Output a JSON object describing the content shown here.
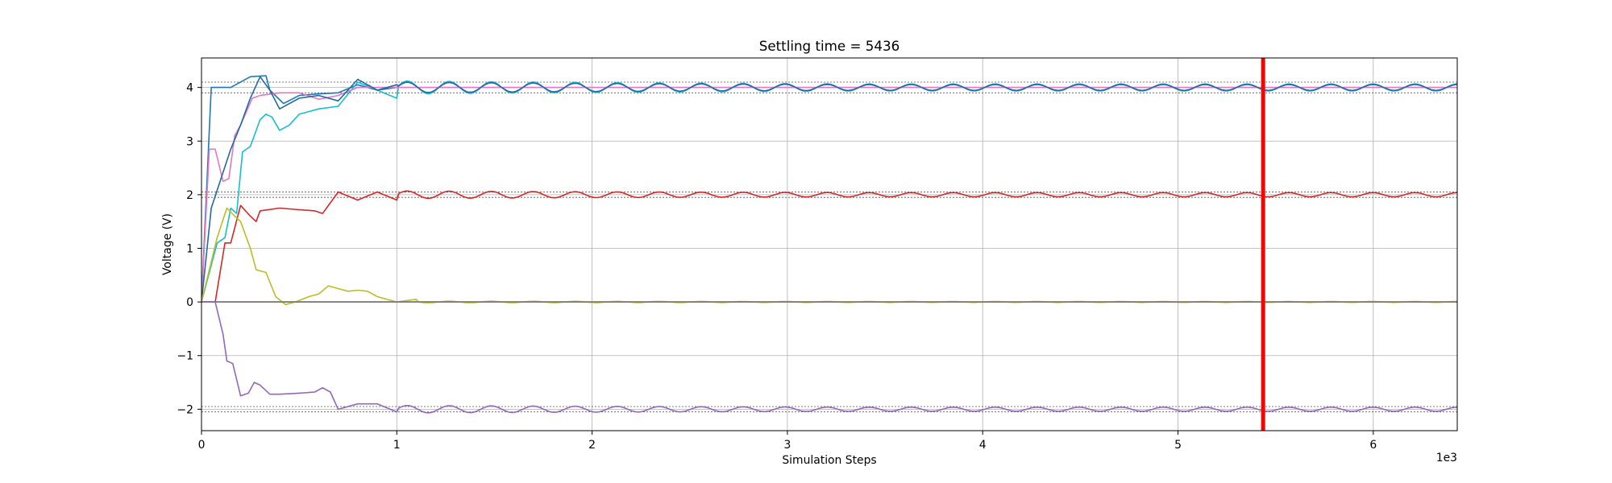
{
  "chart_data": {
    "type": "line",
    "title": "Settling time = 5436",
    "xlabel": "Simulation Steps",
    "ylabel": "Voltage (V)",
    "x_offset_label": "1e3",
    "xlim": [
      0,
      6430
    ],
    "ylim": [
      -2.4,
      4.55
    ],
    "grid": true,
    "x_ticks": [
      0,
      1000,
      2000,
      3000,
      4000,
      5000,
      6000
    ],
    "x_tick_labels": [
      "0",
      "1",
      "2",
      "3",
      "4",
      "5",
      "6"
    ],
    "y_ticks": [
      -2,
      -1,
      0,
      1,
      2,
      3,
      4
    ],
    "y_tick_labels": [
      "−2",
      "−1",
      "0",
      "1",
      "2",
      "3",
      "4"
    ],
    "settling_time": 5436,
    "settling_line_color": "#ff0000",
    "reference_lines": [
      4.1,
      3.9,
      2.05,
      1.95,
      0,
      -1.95,
      -2.05
    ],
    "series": [
      {
        "color": "#1f77b4",
        "points": [
          [
            0,
            0
          ],
          [
            50,
            4.0
          ],
          [
            150,
            4.0
          ],
          [
            250,
            4.2
          ],
          [
            330,
            4.22
          ],
          [
            350,
            3.95
          ],
          [
            420,
            3.7
          ],
          [
            500,
            3.85
          ],
          [
            600,
            3.88
          ],
          [
            700,
            3.9
          ],
          [
            800,
            4.05
          ],
          [
            900,
            3.95
          ],
          [
            1000,
            4.0
          ]
        ],
        "settle": 4.0,
        "amp": 0.1
      },
      {
        "color": "#17becf",
        "points": [
          [
            0,
            0
          ],
          [
            80,
            1.1
          ],
          [
            120,
            1.2
          ],
          [
            150,
            1.75
          ],
          [
            180,
            1.65
          ],
          [
            210,
            2.8
          ],
          [
            250,
            2.9
          ],
          [
            300,
            3.4
          ],
          [
            330,
            3.5
          ],
          [
            360,
            3.45
          ],
          [
            400,
            3.2
          ],
          [
            450,
            3.3
          ],
          [
            500,
            3.5
          ],
          [
            600,
            3.6
          ],
          [
            700,
            3.65
          ],
          [
            800,
            4.1
          ],
          [
            900,
            3.95
          ],
          [
            1000,
            3.8
          ]
        ],
        "settle": 4.0,
        "amp": 0.12
      },
      {
        "color": "#e377c2",
        "points": [
          [
            0,
            0
          ],
          [
            40,
            2.85
          ],
          [
            70,
            2.85
          ],
          [
            110,
            2.25
          ],
          [
            140,
            2.3
          ],
          [
            170,
            3.1
          ],
          [
            200,
            3.3
          ],
          [
            260,
            3.8
          ],
          [
            300,
            3.85
          ],
          [
            400,
            3.9
          ],
          [
            500,
            3.9
          ],
          [
            600,
            3.78
          ],
          [
            700,
            3.85
          ],
          [
            800,
            4.0
          ],
          [
            900,
            4.0
          ],
          [
            1000,
            4.0
          ]
        ],
        "settle": 4.0,
        "amp": 0.0
      },
      {
        "color": "#2369a8",
        "points": [
          [
            0,
            0
          ],
          [
            50,
            1.75
          ],
          [
            100,
            2.3
          ],
          [
            150,
            2.85
          ],
          [
            200,
            3.3
          ],
          [
            250,
            3.8
          ],
          [
            300,
            4.2
          ],
          [
            350,
            3.95
          ],
          [
            400,
            3.6
          ],
          [
            500,
            3.8
          ],
          [
            600,
            3.85
          ],
          [
            700,
            3.75
          ],
          [
            800,
            4.15
          ],
          [
            900,
            3.95
          ],
          [
            1000,
            4.05
          ]
        ],
        "settle": 4.0,
        "amp": 0.1
      },
      {
        "color": "#d62728",
        "points": [
          [
            0,
            0
          ],
          [
            70,
            0
          ],
          [
            120,
            1.1
          ],
          [
            150,
            1.1
          ],
          [
            200,
            1.8
          ],
          [
            250,
            1.6
          ],
          [
            280,
            1.5
          ],
          [
            300,
            1.7
          ],
          [
            400,
            1.75
          ],
          [
            500,
            1.72
          ],
          [
            580,
            1.7
          ],
          [
            620,
            1.65
          ],
          [
            700,
            2.05
          ],
          [
            800,
            1.9
          ],
          [
            900,
            2.05
          ],
          [
            1000,
            1.9
          ]
        ],
        "settle": 2.0,
        "amp": 0.07
      },
      {
        "color": "#bcbd22",
        "points": [
          [
            0,
            0
          ],
          [
            80,
            1.2
          ],
          [
            130,
            1.75
          ],
          [
            170,
            1.6
          ],
          [
            200,
            1.5
          ],
          [
            250,
            1.0
          ],
          [
            280,
            0.6
          ],
          [
            330,
            0.55
          ],
          [
            380,
            0.1
          ],
          [
            430,
            -0.05
          ],
          [
            480,
            0.0
          ],
          [
            550,
            0.1
          ],
          [
            600,
            0.15
          ],
          [
            650,
            0.3
          ],
          [
            700,
            0.25
          ],
          [
            750,
            0.2
          ],
          [
            800,
            0.22
          ],
          [
            850,
            0.2
          ],
          [
            900,
            0.1
          ],
          [
            1000,
            0.0
          ],
          [
            1100,
            0.05
          ]
        ],
        "settle": 0.0,
        "amp": 0.015
      },
      {
        "color": "#8c564b",
        "points": [
          [
            0,
            0
          ],
          [
            1000,
            0
          ]
        ],
        "settle": 0.0,
        "amp": 0.0
      },
      {
        "color": "#7f7f7f",
        "points": [
          [
            0,
            0
          ],
          [
            1000,
            0
          ]
        ],
        "settle": 0.0,
        "amp": 0.0
      },
      {
        "color": "#9467bd",
        "points": [
          [
            0,
            0
          ],
          [
            70,
            0
          ],
          [
            110,
            -0.6
          ],
          [
            130,
            -1.1
          ],
          [
            160,
            -1.15
          ],
          [
            200,
            -1.75
          ],
          [
            240,
            -1.7
          ],
          [
            270,
            -1.5
          ],
          [
            300,
            -1.55
          ],
          [
            350,
            -1.72
          ],
          [
            400,
            -1.72
          ],
          [
            500,
            -1.7
          ],
          [
            580,
            -1.68
          ],
          [
            620,
            -1.6
          ],
          [
            660,
            -1.68
          ],
          [
            700,
            -2.0
          ],
          [
            800,
            -1.9
          ],
          [
            900,
            -1.9
          ],
          [
            1000,
            -2.05
          ]
        ],
        "settle": -2.0,
        "amp": 0.07
      }
    ]
  }
}
